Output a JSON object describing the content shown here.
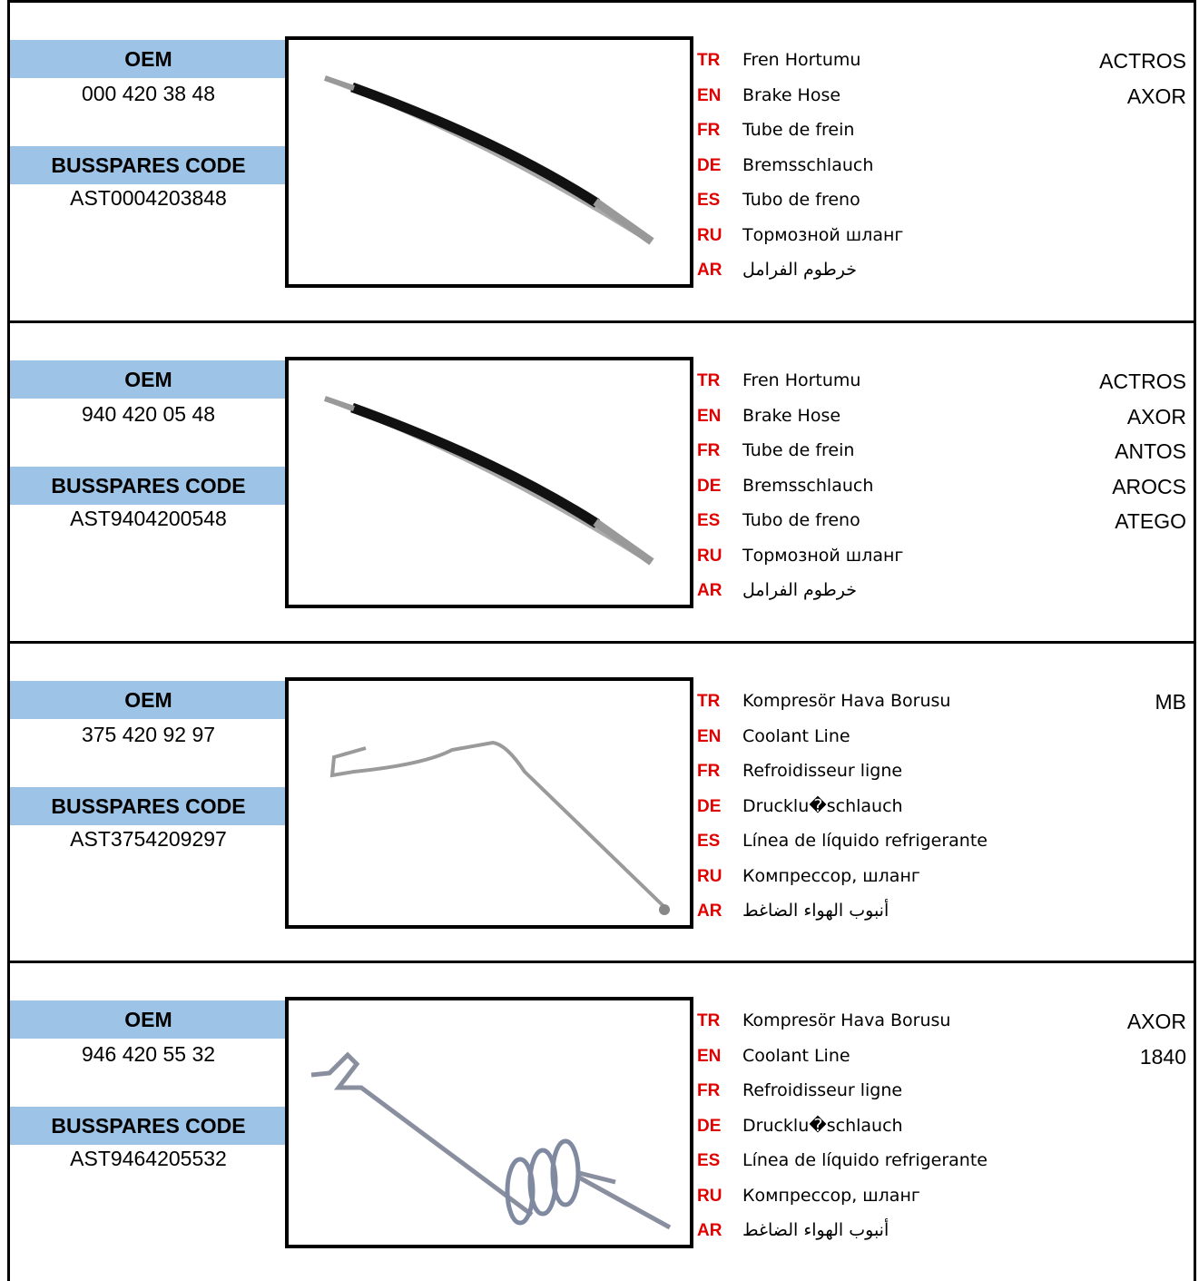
{
  "rows": [
    {
      "oem_label": "OEM",
      "oem": "000 420 38 48",
      "code_label": "BUSSPARES CODE",
      "code": "AST0004203848",
      "names": [
        {
          "lang": "TR",
          "text": "Fren Hortumu"
        },
        {
          "lang": "EN",
          "text": "Brake Hose"
        },
        {
          "lang": "FR",
          "text": "Tube de frein"
        },
        {
          "lang": "DE",
          "text": "Bremsschlauch"
        },
        {
          "lang": "ES",
          "text": "Tubo de freno"
        },
        {
          "lang": "RU",
          "text": "Тормозной шланг"
        },
        {
          "lang": "AR",
          "text": "خرطوم الفرامل"
        }
      ],
      "models": [
        "ACTROS",
        "AXOR"
      ]
    },
    {
      "oem_label": "OEM",
      "oem": "940 420 05 48",
      "code_label": "BUSSPARES CODE",
      "code": "AST9404200548",
      "names": [
        {
          "lang": "TR",
          "text": "Fren Hortumu"
        },
        {
          "lang": "EN",
          "text": "Brake Hose"
        },
        {
          "lang": "FR",
          "text": "Tube de frein"
        },
        {
          "lang": "DE",
          "text": "Bremsschlauch"
        },
        {
          "lang": "ES",
          "text": "Tubo de freno"
        },
        {
          "lang": "RU",
          "text": "Тормозной шланг"
        },
        {
          "lang": "AR",
          "text": "خرطوم الفرامل"
        }
      ],
      "models": [
        "ACTROS",
        "AXOR",
        "ANTOS",
        "AROCS",
        "ATEGO"
      ]
    },
    {
      "oem_label": "OEM",
      "oem": "375 420 92 97",
      "code_label": "BUSSPARES CODE",
      "code": "AST3754209297",
      "names": [
        {
          "lang": "TR",
          "text": "Kompresör Hava Borusu"
        },
        {
          "lang": "EN",
          "text": "Coolant Line"
        },
        {
          "lang": "FR",
          "text": "Refroidisseur ligne"
        },
        {
          "lang": "DE",
          "text": "Drucklu�schlauch"
        },
        {
          "lang": "ES",
          "text": "Línea de líquido refrigerante"
        },
        {
          "lang": "RU",
          "text": "Компрессор, шланг"
        },
        {
          "lang": "AR",
          "text": "أنبوب الهواء الضاغط"
        }
      ],
      "models": [
        "MB"
      ]
    },
    {
      "oem_label": "OEM",
      "oem": "946 420 55 32",
      "code_label": "BUSSPARES CODE",
      "code": "AST9464205532",
      "names": [
        {
          "lang": "TR",
          "text": "Kompresör Hava Borusu"
        },
        {
          "lang": "EN",
          "text": "Coolant Line"
        },
        {
          "lang": "FR",
          "text": "Refroidisseur ligne"
        },
        {
          "lang": "DE",
          "text": "Drucklu�schlauch"
        },
        {
          "lang": "ES",
          "text": "Línea de líquido refrigerante"
        },
        {
          "lang": "RU",
          "text": "Компрессор, шланг"
        },
        {
          "lang": "AR",
          "text": "أنبوب الهواء الضاغط"
        }
      ],
      "models": [
        "AXOR",
        "1840"
      ]
    }
  ]
}
